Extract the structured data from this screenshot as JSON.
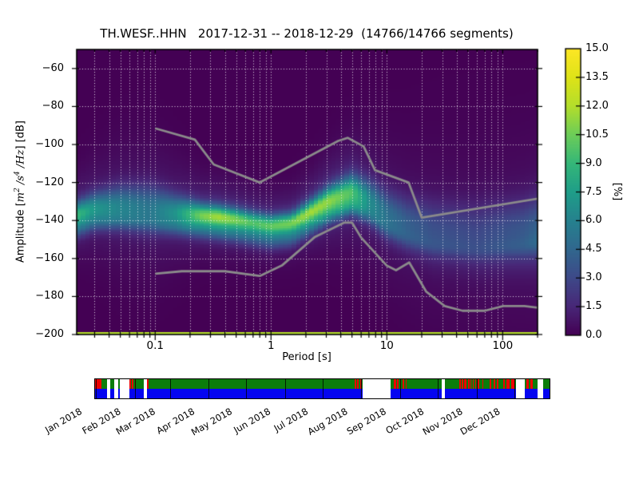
{
  "figure": {
    "title": "TH.WESF..HHN   2017-12-31 -- 2018-12-29  (14766/14766 segments)"
  },
  "chart_data": {
    "type": "heatmap",
    "station_id": "TH.WESF..HHN",
    "date_start": "2017-12-31",
    "date_end": "2018-12-29",
    "segments_used": 14766,
    "segments_total": 14766,
    "xlabel": "Period [s]",
    "x_scale": "log",
    "xlim": [
      0.021,
      200
    ],
    "x_ticks": [
      0.1,
      1,
      10,
      100
    ],
    "x_tick_labels": [
      "0.1",
      "1",
      "10",
      "100"
    ],
    "x_minor_ticks": [
      0.03,
      0.04,
      0.05,
      0.06,
      0.07,
      0.08,
      0.09,
      0.2,
      0.3,
      0.4,
      0.5,
      0.6,
      0.7,
      0.8,
      0.9,
      2,
      3,
      4,
      5,
      6,
      7,
      8,
      9,
      20,
      30,
      40,
      50,
      60,
      70,
      80,
      90,
      200
    ],
    "ylabel": {
      "prefix": "Amplitude [",
      "unit_m": "m",
      "unit_m_exp": "2",
      "unit_s": " /s",
      "unit_s_exp": "4",
      "unit_hz": " /Hz",
      "suffix": "] [dB]"
    },
    "ylim": [
      -200,
      -50
    ],
    "y_ticks": [
      -60,
      -80,
      -100,
      -120,
      -140,
      -160,
      -180,
      -200
    ],
    "y_tick_labels": [
      "−60",
      "−80",
      "−100",
      "−120",
      "−140",
      "−160",
      "−180",
      "−200"
    ],
    "grid": {
      "show": true,
      "color": "#ffffff",
      "style": "dotted"
    },
    "colormap": "viridis",
    "background_color": "#440154",
    "colorbar": {
      "label": "[%]",
      "min": 0.0,
      "max": 15.0,
      "tick_values": [
        0.0,
        1.5,
        3.0,
        4.5,
        6.0,
        7.5,
        9.0,
        10.5,
        12.0,
        13.5,
        15.0
      ],
      "tick_labels": [
        "0.0",
        "1.5",
        "3.0",
        "4.5",
        "6.0",
        "7.5",
        "9.0",
        "10.5",
        "12.0",
        "13.5",
        "15.0"
      ]
    },
    "psd_band_profile": {
      "comment": "period_s, mode_amplitude_dB, peak_probability_pct, gaussian_sigma_dB",
      "points": [
        [
          0.021,
          -137.0,
          7.6,
          4.5
        ],
        [
          0.03,
          -133.5,
          5.9,
          5.5
        ],
        [
          0.05,
          -132.5,
          5.1,
          7.0
        ],
        [
          0.09,
          -133.5,
          4.4,
          8.0
        ],
        [
          0.15,
          -135.5,
          5.8,
          6.0
        ],
        [
          0.25,
          -137.2,
          8.9,
          4.2
        ],
        [
          0.35,
          -138.0,
          9.7,
          4.0
        ],
        [
          0.5,
          -139.5,
          8.9,
          4.0
        ],
        [
          0.7,
          -141.3,
          8.1,
          4.0
        ],
        [
          1.0,
          -142.8,
          8.5,
          3.8
        ],
        [
          1.5,
          -141.5,
          8.9,
          3.8
        ],
        [
          2.2,
          -135.5,
          9.7,
          4.2
        ],
        [
          3.2,
          -129.5,
          9.3,
          5.0
        ],
        [
          5.0,
          -124.8,
          8.1,
          6.0
        ],
        [
          7.0,
          -129.0,
          5.5,
          7.0
        ],
        [
          10.0,
          -136.5,
          4.2,
          8.0
        ],
        [
          15.0,
          -141.5,
          3.4,
          9.0
        ],
        [
          25.0,
          -145.5,
          2.8,
          10.5
        ],
        [
          60.0,
          -148.0,
          2.5,
          11.5
        ],
        [
          150.0,
          -146.0,
          3.1,
          11.5
        ],
        [
          200.0,
          -144.5,
          3.6,
          11.5
        ]
      ],
      "sub_band": {
        "offset_db": -8,
        "amp_ratio": 0.32,
        "sigma_db": 3.4
      },
      "halo": {
        "amp_ratio": 0.18,
        "sigma_scale": 3.0
      }
    },
    "baseline_row": {
      "percent": 12
    },
    "noise_models": {
      "color": "#8b8b8b",
      "nhnm": [
        [
          0.1,
          -91.5
        ],
        [
          0.22,
          -97.4
        ],
        [
          0.32,
          -110.5
        ],
        [
          0.8,
          -120.0
        ],
        [
          3.8,
          -98.1
        ],
        [
          4.6,
          -96.5
        ],
        [
          6.3,
          -101.0
        ],
        [
          7.9,
          -113.5
        ],
        [
          15.4,
          -120.0
        ],
        [
          20.0,
          -138.5
        ],
        [
          354.8,
          -126.0
        ]
      ],
      "nlnm": [
        [
          0.1,
          -168.0
        ],
        [
          0.17,
          -166.7
        ],
        [
          0.4,
          -166.7
        ],
        [
          0.8,
          -169.2
        ],
        [
          1.24,
          -163.7
        ],
        [
          2.4,
          -148.6
        ],
        [
          4.3,
          -141.1
        ],
        [
          5.0,
          -141.1
        ],
        [
          6.0,
          -149.0
        ],
        [
          10.0,
          -163.8
        ],
        [
          12.0,
          -166.2
        ],
        [
          15.6,
          -162.1
        ],
        [
          21.9,
          -177.5
        ],
        [
          31.6,
          -185.0
        ],
        [
          45.0,
          -187.5
        ],
        [
          70.0,
          -187.5
        ],
        [
          101.0,
          -185.0
        ],
        [
          154.0,
          -185.0
        ],
        [
          328.0,
          -187.5
        ]
      ]
    }
  },
  "timeline": {
    "psd_row_color": "#0b7d0b",
    "data_row_color": "#0505f0",
    "gap_color": "#ffffff",
    "red_mark_color": "#ee0000",
    "months": [
      "Jan 2018",
      "Feb 2018",
      "Mar 2018",
      "Apr 2018",
      "May 2018",
      "Jun 2018",
      "Jul 2018",
      "Aug 2018",
      "Sep 2018",
      "Oct 2018",
      "Nov 2018",
      "Dec 2018"
    ],
    "month_fracs": [
      0.0028,
      0.0881,
      0.1653,
      0.2507,
      0.3333,
      0.4187,
      0.5014,
      0.5868,
      0.6722,
      0.7548,
      0.8402,
      0.9229
    ],
    "gaps": [
      [
        0.0258,
        0.0339
      ],
      [
        0.0417,
        0.0504
      ],
      [
        0.055,
        0.075
      ],
      [
        0.1077,
        0.1137
      ],
      [
        0.5888,
        0.6503
      ],
      [
        0.7622,
        0.7698
      ],
      [
        0.9262,
        0.9464
      ],
      [
        0.9745,
        0.9851
      ]
    ],
    "red_marks": [
      [
        0.0,
        0.0141
      ],
      [
        0.075,
        0.0791
      ],
      [
        0.0817,
        0.0852
      ],
      [
        0.087,
        0.0905
      ],
      [
        0.1137,
        0.1177
      ],
      [
        0.5712,
        0.5747
      ],
      [
        0.5773,
        0.5808
      ],
      [
        0.5835,
        0.587
      ],
      [
        0.6573,
        0.6617
      ],
      [
        0.6643,
        0.6678
      ],
      [
        0.6705,
        0.674
      ],
      [
        0.6766,
        0.6801
      ],
      [
        0.6828,
        0.6863
      ],
      [
        0.8006,
        0.8041
      ],
      [
        0.8067,
        0.8102
      ],
      [
        0.812,
        0.8181
      ],
      [
        0.8207,
        0.8234
      ],
      [
        0.826,
        0.8286
      ],
      [
        0.8313,
        0.8339
      ],
      [
        0.8366,
        0.8392
      ],
      [
        0.8418,
        0.8445
      ],
      [
        0.8524,
        0.855
      ],
      [
        0.8682,
        0.8717
      ],
      [
        0.877,
        0.8805
      ],
      [
        0.884,
        0.8875
      ],
      [
        0.8981,
        0.9016
      ],
      [
        0.9051,
        0.9121
      ],
      [
        0.9156,
        0.9227
      ],
      [
        0.9499,
        0.9543
      ],
      [
        0.9578,
        0.9631
      ]
    ]
  }
}
